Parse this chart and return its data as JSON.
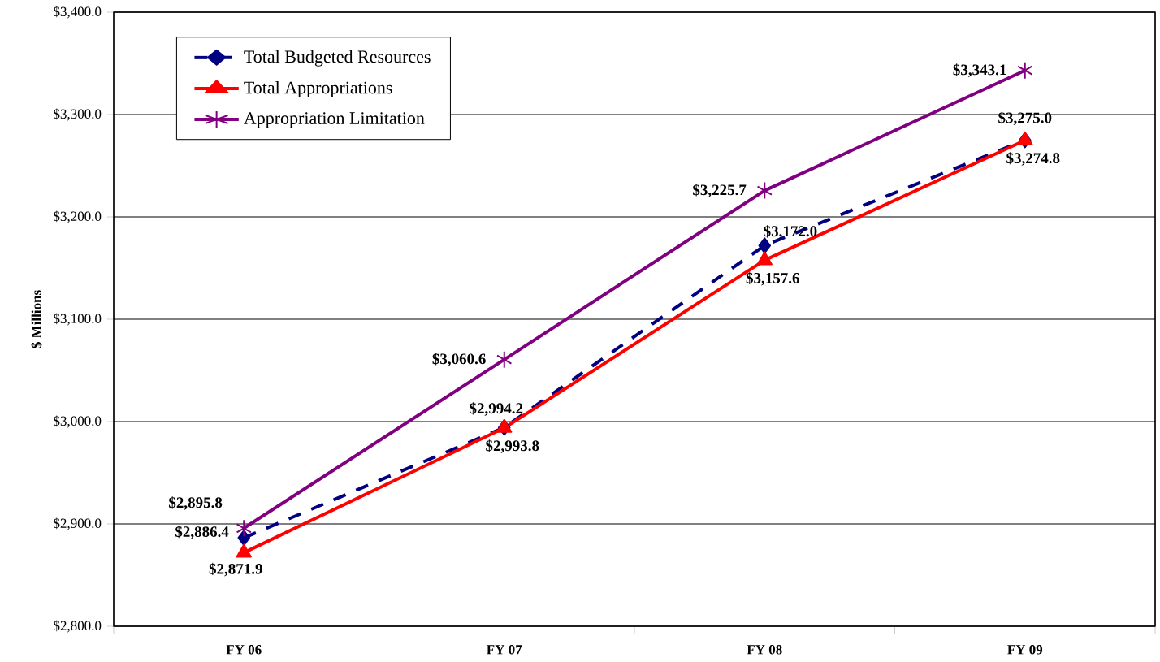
{
  "chart_data": {
    "type": "line",
    "ylabel": "$ Millions",
    "categories": [
      "FY 06",
      "FY 07",
      "FY 08",
      "FY 09"
    ],
    "series": [
      {
        "name": "Total Budgeted Resources",
        "color": "#000080",
        "values": [
          2886.4,
          2994.2,
          3172.0,
          3275.0
        ],
        "value_labels": [
          "$2,886.4",
          "$2,994.2",
          "$3,172.0",
          "$3,275.0"
        ],
        "marker": "diamond",
        "line_style": "dashed"
      },
      {
        "name": "Total Appropriations",
        "color": "#ff0000",
        "values": [
          2871.9,
          2993.8,
          3157.6,
          3274.8
        ],
        "value_labels": [
          "$2,871.9",
          "$2,993.8",
          "$3,157.6",
          "$3,274.8"
        ],
        "marker": "triangle",
        "line_style": "solid"
      },
      {
        "name": "Appropriation Limitation",
        "color": "#800080",
        "values": [
          2895.8,
          3060.6,
          3225.7,
          3343.1
        ],
        "value_labels": [
          "$2,895.8",
          "$3,060.6",
          "$3,225.7",
          "$3,343.1"
        ],
        "marker": "cross",
        "line_style": "solid"
      }
    ],
    "ylim": [
      2800,
      3400
    ],
    "yticks": [
      {
        "value": 2800,
        "label": "$2,800.0"
      },
      {
        "value": 2900,
        "label": "$2,900.0"
      },
      {
        "value": 3000,
        "label": "$3,000.0"
      },
      {
        "value": 3100,
        "label": "$3,100.0"
      },
      {
        "value": 3200,
        "label": "$3,200.0"
      },
      {
        "value": 3300,
        "label": "$3,300.0"
      },
      {
        "value": 3400,
        "label": "$3,400.0"
      }
    ],
    "grid": "y",
    "legend": "top left"
  }
}
